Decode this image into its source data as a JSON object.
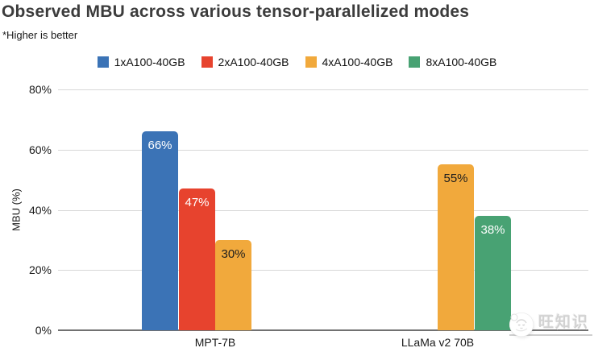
{
  "watermark": {
    "text": "旺知识",
    "icon": "wechat-chick-icon"
  },
  "colors": {
    "gridline": "#D8D8D8",
    "axis_line": "#717171",
    "title_text": "#3C3C3C",
    "body_text": "#1A1A1A"
  },
  "chart_data": {
    "type": "bar",
    "title": "Observed MBU across various tensor-parallelized modes",
    "subtitle": "*Higher is better",
    "ylabel": "MBU (%)",
    "xlabel": "",
    "ylim": [
      0,
      80
    ],
    "yticks": [
      0,
      20,
      40,
      60,
      80
    ],
    "ytick_labels": [
      "0%",
      "20%",
      "40%",
      "60%",
      "80%"
    ],
    "grid": true,
    "legend_position": "top",
    "categories": [
      "MPT-7B",
      "LLaMa v2 70B"
    ],
    "series": [
      {
        "name": "1xA100-40GB",
        "color": "#3B73B6",
        "value_label_color": "#FFFFFF",
        "values": [
          66,
          null
        ]
      },
      {
        "name": "2xA100-40GB",
        "color": "#E7432E",
        "value_label_color": "#FFFFFF",
        "values": [
          47,
          null
        ]
      },
      {
        "name": "4xA100-40GB",
        "color": "#F1A93C",
        "value_label_color": "#1E1E1E",
        "values": [
          30,
          55
        ]
      },
      {
        "name": "8xA100-40GB",
        "color": "#48A273",
        "value_label_color": "#FFFFFF",
        "values": [
          null,
          38
        ]
      }
    ],
    "value_labels": [
      [
        "66%",
        "47%",
        "30%"
      ],
      [
        "55%",
        "38%"
      ]
    ],
    "value_label_format": "{v}%"
  }
}
